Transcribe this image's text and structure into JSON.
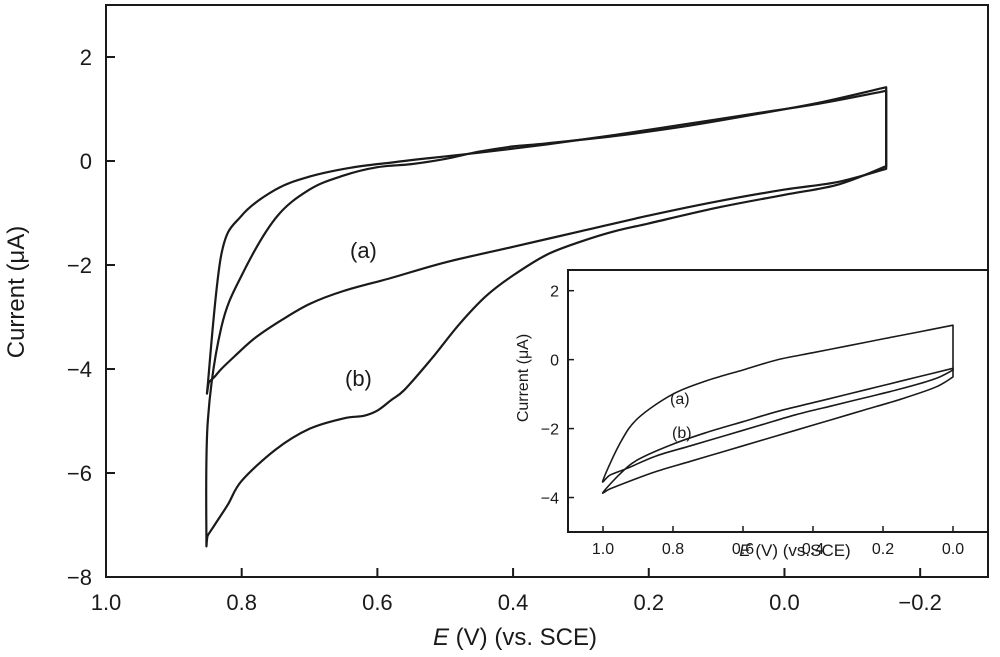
{
  "chart_data": {
    "type": "line",
    "main": {
      "xlabel_italic": "E",
      "xlabel_rest": " (V) (vs. SCE)",
      "ylabel": "Current (μA)",
      "xlim": [
        1.0,
        -0.3
      ],
      "ylim": [
        -8,
        3
      ],
      "xticks": [
        1.0,
        0.8,
        0.6,
        0.4,
        0.2,
        0.0,
        -0.2
      ],
      "xtick_labels": [
        "1.0",
        "0.8",
        "0.6",
        "0.4",
        "0.2",
        "0.0",
        "−0.2"
      ],
      "yticks": [
        2,
        0,
        -2,
        -4,
        -6,
        -8
      ],
      "ytick_labels": [
        "2",
        "0",
        "−2",
        "−4",
        "−6",
        "−8"
      ],
      "series": [
        {
          "label": "(a)",
          "x": [
            -0.15,
            -0.05,
            0.05,
            0.15,
            0.25,
            0.35,
            0.45,
            0.52,
            0.58,
            0.64,
            0.7,
            0.75,
            0.8,
            0.83,
            0.85,
            0.848,
            0.84,
            0.83,
            0.81,
            0.78,
            0.74,
            0.7,
            0.65,
            0.58,
            0.5,
            0.4,
            0.3,
            0.2,
            0.1,
            0.0,
            -0.08,
            -0.15
          ],
          "y": [
            1.35,
            1.1,
            0.9,
            0.7,
            0.5,
            0.32,
            0.16,
            0.06,
            -0.03,
            -0.13,
            -0.3,
            -0.55,
            -1.05,
            -1.8,
            -4.3,
            -4.25,
            -4.15,
            -4.0,
            -3.75,
            -3.4,
            -3.05,
            -2.75,
            -2.5,
            -2.25,
            -1.95,
            -1.65,
            -1.35,
            -1.05,
            -0.78,
            -0.55,
            -0.4,
            -0.15
          ]
        },
        {
          "label": "(b)",
          "x": [
            -0.15,
            -0.05,
            0.05,
            0.15,
            0.25,
            0.35,
            0.4,
            0.45,
            0.5,
            0.55,
            0.6,
            0.65,
            0.7,
            0.75,
            0.8,
            0.83,
            0.85,
            0.852,
            0.85,
            0.84,
            0.82,
            0.8,
            0.75,
            0.7,
            0.65,
            0.62,
            0.6,
            0.58,
            0.56,
            0.52,
            0.48,
            0.44,
            0.4,
            0.35,
            0.3,
            0.25,
            0.2,
            0.1,
            0.0,
            -0.08,
            -0.15
          ],
          "y": [
            1.42,
            1.12,
            0.88,
            0.66,
            0.48,
            0.34,
            0.28,
            0.18,
            0.04,
            -0.06,
            -0.12,
            -0.28,
            -0.55,
            -1.1,
            -2.2,
            -3.2,
            -5.0,
            -7.25,
            -7.2,
            -7.0,
            -6.6,
            -6.15,
            -5.55,
            -5.15,
            -4.95,
            -4.9,
            -4.8,
            -4.6,
            -4.4,
            -3.8,
            -3.15,
            -2.6,
            -2.2,
            -1.8,
            -1.55,
            -1.35,
            -1.2,
            -0.9,
            -0.65,
            -0.45,
            -0.1
          ]
        }
      ],
      "annotations": [
        "(a)",
        "(b)"
      ]
    },
    "inset": {
      "xlabel_italic": "E",
      "xlabel_rest": " (V) (vs.SCE)",
      "ylabel": "Current (μA)",
      "xlim": [
        1.1,
        -0.1
      ],
      "ylim": [
        -5,
        2.6
      ],
      "xticks": [
        1.0,
        0.8,
        0.6,
        0.4,
        0.2,
        0.0
      ],
      "xtick_labels": [
        "1.0",
        "0.8",
        "0.6",
        "0.4",
        "0.2",
        "0.0"
      ],
      "yticks": [
        2,
        0,
        -2,
        -4
      ],
      "ytick_labels": [
        "2",
        "0",
        "−2",
        "−4"
      ],
      "series": [
        {
          "label": "(a)",
          "x": [
            0.0,
            0.1,
            0.2,
            0.3,
            0.4,
            0.5,
            0.6,
            0.7,
            0.8,
            0.9,
            0.95,
            1.0,
            0.98,
            0.93,
            0.85,
            0.75,
            0.65,
            0.55,
            0.45,
            0.35,
            0.25,
            0.15,
            0.05,
            0.0
          ],
          "y": [
            1.0,
            0.8,
            0.6,
            0.4,
            0.2,
            0.0,
            -0.3,
            -0.6,
            -1.0,
            -1.7,
            -2.4,
            -3.5,
            -3.35,
            -3.15,
            -2.8,
            -2.5,
            -2.2,
            -1.9,
            -1.6,
            -1.35,
            -1.1,
            -0.85,
            -0.55,
            -0.3
          ]
        },
        {
          "label": "(b)",
          "x": [
            0.0,
            0.1,
            0.2,
            0.3,
            0.4,
            0.5,
            0.6,
            0.7,
            0.8,
            0.9,
            0.95,
            1.0,
            0.98,
            0.93,
            0.85,
            0.75,
            0.65,
            0.55,
            0.45,
            0.35,
            0.25,
            0.15,
            0.05,
            0.0
          ],
          "y": [
            -0.25,
            -0.5,
            -0.75,
            -1.0,
            -1.25,
            -1.5,
            -1.8,
            -2.1,
            -2.45,
            -2.9,
            -3.3,
            -3.85,
            -3.75,
            -3.55,
            -3.25,
            -2.95,
            -2.65,
            -2.35,
            -2.05,
            -1.75,
            -1.45,
            -1.15,
            -0.8,
            -0.5
          ]
        }
      ],
      "annotations": [
        "(a)",
        "(b)"
      ]
    }
  }
}
